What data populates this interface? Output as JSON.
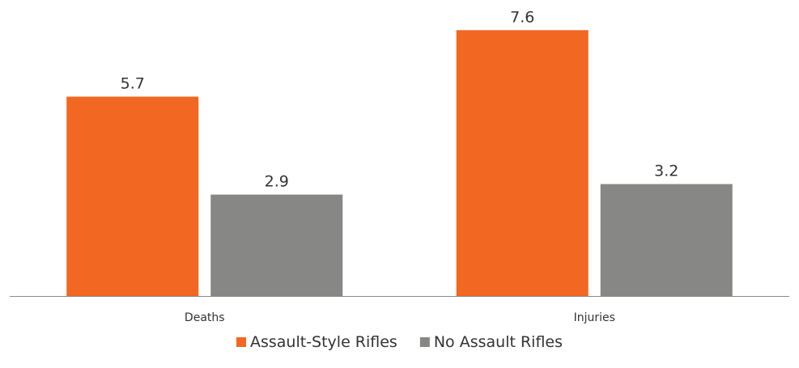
{
  "chart_data": {
    "type": "bar",
    "categories": [
      "Deaths",
      "Injuries"
    ],
    "series": [
      {
        "name": "Assault-Style Rifles",
        "values": [
          5.7,
          7.6
        ],
        "color": "#f26722"
      },
      {
        "name": "No Assault Rifles",
        "values": [
          2.9,
          3.2
        ],
        "color": "#878786"
      }
    ],
    "ylim": [
      0,
      8
    ],
    "grid": false,
    "legend_position": "bottom",
    "axis_line_color": "#8c8c8c",
    "title": "",
    "xlabel": "",
    "ylabel": ""
  }
}
